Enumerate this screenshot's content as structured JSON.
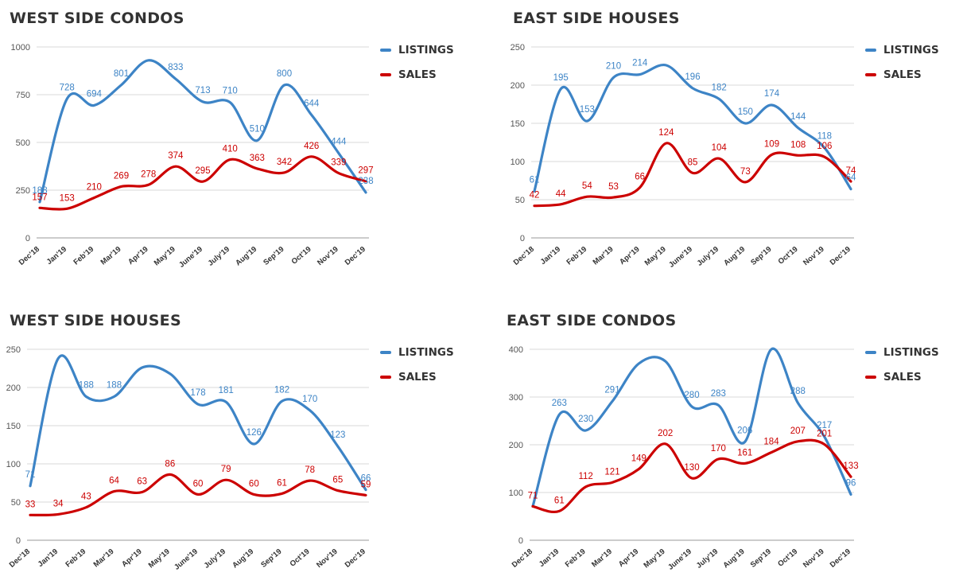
{
  "colors": {
    "listings": "#3d84c6",
    "sales": "#cc0000",
    "grid": "#d9d9d9",
    "text": "#555555"
  },
  "legend": {
    "listings": "LISTINGS",
    "sales": "SALES"
  },
  "chart_data": [
    {
      "type": "line",
      "title": "WEST SIDE CONDOS",
      "categories": [
        "Dec'18",
        "Jan'19",
        "Feb'19",
        "Mar'19",
        "Apr'19",
        "May'19",
        "June'19",
        "July'19",
        "Aug'19",
        "Sep'19",
        "Oct'19",
        "Nov'19",
        "Dec'19"
      ],
      "ylim": [
        0,
        1000
      ],
      "yticks": [
        0,
        250,
        500,
        750,
        1000
      ],
      "series": [
        {
          "name": "LISTINGS",
          "values": [
            188,
            728,
            694,
            801,
            930,
            833,
            713,
            710,
            510,
            800,
            644,
            444,
            238
          ],
          "labels": [
            "188",
            "728",
            "694",
            "801",
            "",
            "833",
            "713",
            "710",
            "510",
            "800",
            "644",
            "444",
            "238"
          ]
        },
        {
          "name": "SALES",
          "values": [
            157,
            153,
            210,
            269,
            278,
            374,
            295,
            410,
            363,
            342,
            426,
            339,
            297
          ],
          "labels": [
            "157",
            "153",
            "210",
            "269",
            "278",
            "374",
            "295",
            "410",
            "363",
            "342",
            "426",
            "339",
            "297"
          ]
        }
      ],
      "grid": true,
      "legend_position": "right"
    },
    {
      "type": "line",
      "title": "EAST SIDE HOUSES",
      "categories": [
        "Dec'18",
        "Jan'19",
        "Feb'19",
        "Mar'19",
        "Apr'19",
        "May'19",
        "June'19",
        "July'19",
        "Aug'19",
        "Sep'19",
        "Oct'19",
        "Nov'19",
        "Dec'19"
      ],
      "ylim": [
        0,
        250
      ],
      "yticks": [
        0,
        50,
        100,
        150,
        200,
        250
      ],
      "series": [
        {
          "name": "LISTINGS",
          "values": [
            61,
            195,
            153,
            210,
            214,
            226,
            196,
            182,
            150,
            174,
            144,
            118,
            64
          ],
          "labels": [
            "61",
            "195",
            "153",
            "210",
            "214",
            "",
            "196",
            "182",
            "150",
            "174",
            "144",
            "118",
            "64"
          ]
        },
        {
          "name": "SALES",
          "values": [
            42,
            44,
            54,
            53,
            66,
            124,
            85,
            104,
            73,
            109,
            108,
            106,
            74
          ],
          "labels": [
            "42",
            "44",
            "54",
            "53",
            "66",
            "124",
            "85",
            "104",
            "73",
            "109",
            "108",
            "106",
            "74"
          ]
        }
      ],
      "grid": true,
      "legend_position": "right"
    },
    {
      "type": "line",
      "title": "WEST SIDE HOUSES",
      "categories": [
        "Dec'18",
        "Jan'19",
        "Feb'19",
        "Mar'19",
        "Apr'19",
        "May'19",
        "June'19",
        "July'19",
        "Aug'19",
        "Sep'19",
        "Oct'19",
        "Nov'19",
        "Dec'19"
      ],
      "ylim": [
        0,
        250
      ],
      "yticks": [
        0,
        50,
        100,
        150,
        200,
        250
      ],
      "series": [
        {
          "name": "LISTINGS",
          "values": [
            71,
            238,
            188,
            188,
            226,
            218,
            178,
            181,
            126,
            182,
            170,
            123,
            66
          ],
          "labels": [
            "71",
            "",
            "188",
            "188",
            "",
            "",
            "178",
            "181",
            "126",
            "182",
            "170",
            "123",
            "66"
          ]
        },
        {
          "name": "SALES",
          "values": [
            33,
            34,
            43,
            64,
            63,
            86,
            60,
            79,
            60,
            61,
            78,
            65,
            59
          ],
          "labels": [
            "33",
            "34",
            "43",
            "64",
            "63",
            "86",
            "60",
            "79",
            "60",
            "61",
            "78",
            "65",
            "59"
          ]
        }
      ],
      "grid": true,
      "legend_position": "right"
    },
    {
      "type": "line",
      "title": "EAST SIDE CONDOS",
      "categories": [
        "Dec'18",
        "Jan'19",
        "Feb'19",
        "Mar'19",
        "Apr'19",
        "May'19",
        "June'19",
        "July'19",
        "Aug'19",
        "Sep'19",
        "Oct'19",
        "Nov'19",
        "Dec'19"
      ],
      "ylim": [
        0,
        400
      ],
      "yticks": [
        0,
        100,
        200,
        300,
        400
      ],
      "series": [
        {
          "name": "LISTINGS",
          "values": [
            71,
            263,
            230,
            291,
            370,
            375,
            280,
            283,
            206,
            400,
            288,
            217,
            96
          ],
          "labels": [
            "",
            "263",
            "230",
            "291",
            "",
            "",
            "280",
            "283",
            "206",
            "",
            "288",
            "217",
            "96"
          ]
        },
        {
          "name": "SALES",
          "values": [
            71,
            61,
            112,
            121,
            149,
            202,
            130,
            170,
            161,
            184,
            207,
            201,
            133
          ],
          "labels": [
            "71",
            "61",
            "112",
            "121",
            "149",
            "202",
            "130",
            "170",
            "161",
            "184",
            "207",
            "201",
            "133"
          ]
        }
      ],
      "grid": true,
      "legend_position": "right"
    }
  ]
}
